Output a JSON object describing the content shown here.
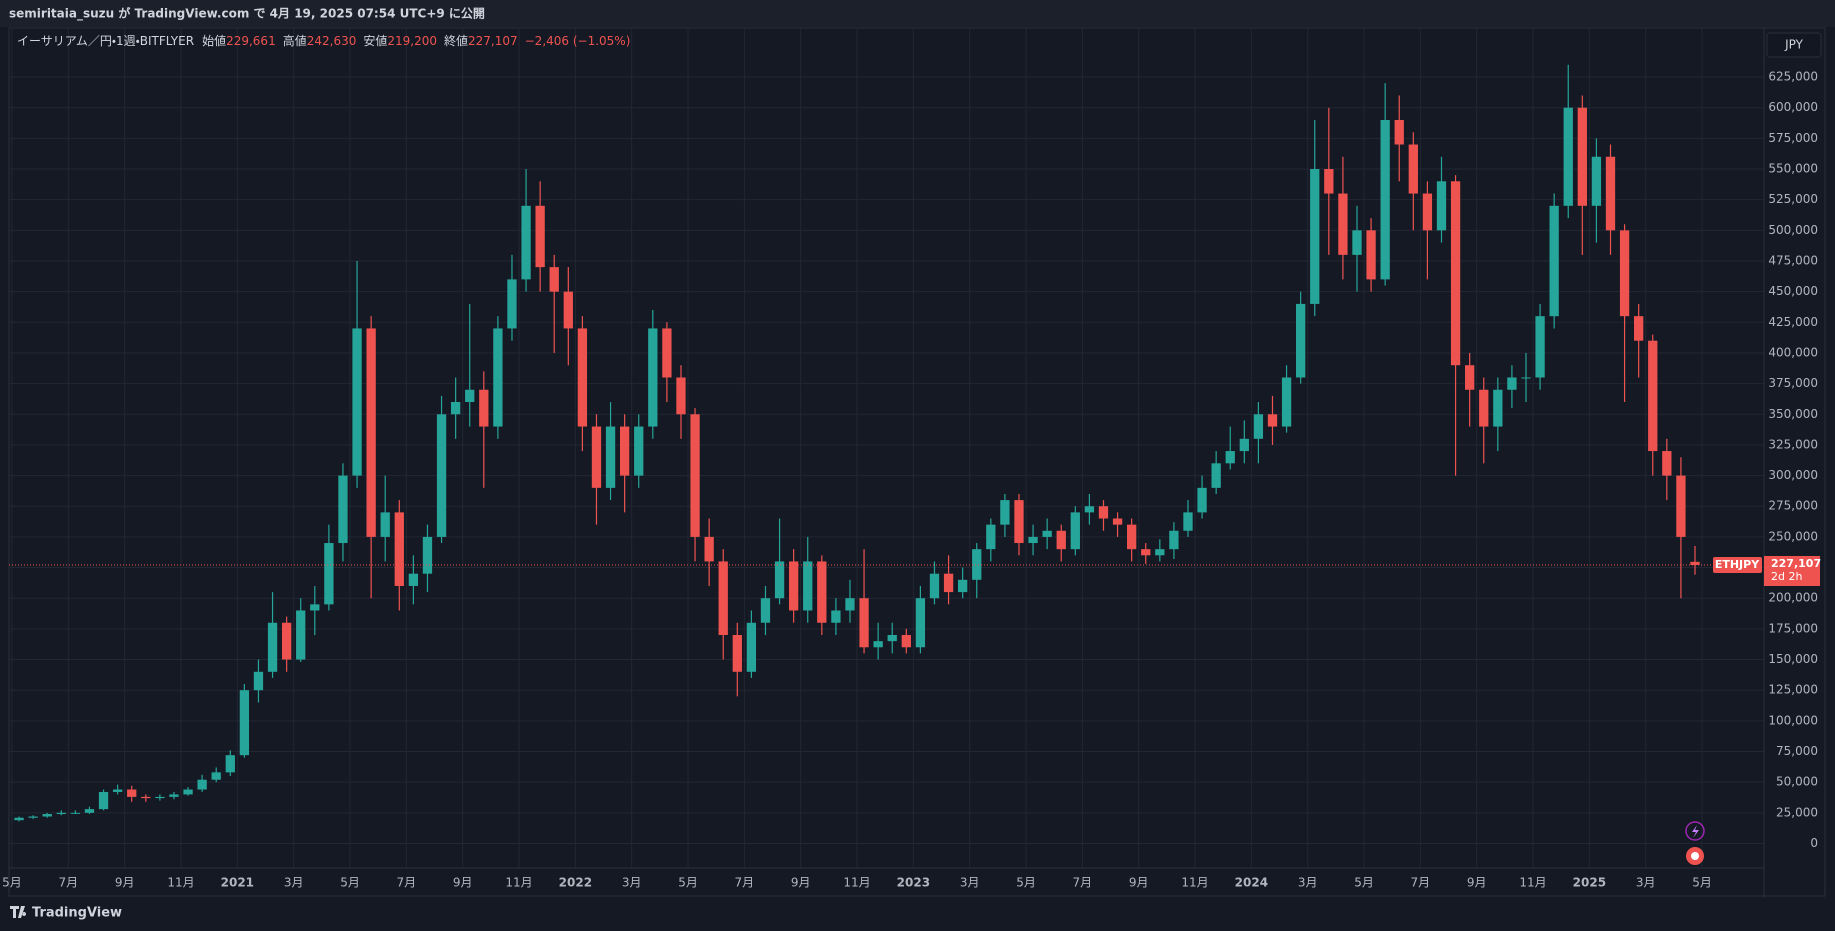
{
  "header": {
    "publisher": "semiritaia_suzu が TradingView.com で 4月 19, 2025 07:54 UTC+9 に公開"
  },
  "chart_data": {
    "type": "candlestick",
    "symbol": "イーサリアム／円・1週・BITFLYER",
    "legend": [
      {
        "name": "始値",
        "value": "229,661"
      },
      {
        "name": "高値",
        "value": "242,630"
      },
      {
        "name": "安値",
        "value": "219,200"
      },
      {
        "name": "終値",
        "value": "227,107"
      }
    ],
    "change": "−2,406 (−1.05%)",
    "currency": "JPY",
    "price_tag": {
      "symbol": "ETHJPY",
      "price": "227,107",
      "countdown": "2d 2h"
    },
    "up_color": "#26a69a",
    "down_color": "#ef5350",
    "x": [
      "2020-05",
      "2020-05",
      "2020-06",
      "2020-06",
      "2020-07",
      "2020-07",
      "2020-08",
      "2020-08",
      "2020-09",
      "2020-09",
      "2020-10",
      "2020-10",
      "2020-11",
      "2020-11",
      "2020-12",
      "2020-12",
      "2021-01",
      "2021-01",
      "2021-02",
      "2021-02",
      "2021-03",
      "2021-03",
      "2021-04",
      "2021-04",
      "2021-05",
      "2021-05",
      "2021-06",
      "2021-06",
      "2021-07",
      "2021-07",
      "2021-08",
      "2021-08",
      "2021-09",
      "2021-09",
      "2021-10",
      "2021-10",
      "2021-11",
      "2021-11",
      "2021-12",
      "2021-12",
      "2022-01",
      "2022-01",
      "2022-02",
      "2022-02",
      "2022-03",
      "2022-03",
      "2022-04",
      "2022-04",
      "2022-05",
      "2022-05",
      "2022-06",
      "2022-06",
      "2022-07",
      "2022-07",
      "2022-08",
      "2022-08",
      "2022-09",
      "2022-09",
      "2022-10",
      "2022-10",
      "2022-11",
      "2022-11",
      "2022-12",
      "2022-12",
      "2023-01",
      "2023-01",
      "2023-02",
      "2023-02",
      "2023-03",
      "2023-03",
      "2023-04",
      "2023-04",
      "2023-05",
      "2023-05",
      "2023-06",
      "2023-06",
      "2023-07",
      "2023-07",
      "2023-08",
      "2023-08",
      "2023-09",
      "2023-09",
      "2023-10",
      "2023-10",
      "2023-11",
      "2023-11",
      "2023-12",
      "2023-12",
      "2024-01",
      "2024-01",
      "2024-02",
      "2024-02",
      "2024-03",
      "2024-03",
      "2024-04",
      "2024-04",
      "2024-05",
      "2024-05",
      "2024-06",
      "2024-06",
      "2024-07",
      "2024-07",
      "2024-08",
      "2024-08",
      "2024-09",
      "2024-09",
      "2024-10",
      "2024-10",
      "2024-11",
      "2024-11",
      "2024-12",
      "2024-12",
      "2025-01",
      "2025-01",
      "2025-02",
      "2025-02",
      "2025-03",
      "2025-03",
      "2025-04",
      "2025-04"
    ],
    "open": [
      19000,
      21000,
      22000,
      24000,
      25000,
      25000,
      28000,
      42000,
      44000,
      38000,
      37000,
      38000,
      40000,
      44000,
      52000,
      58000,
      72000,
      125000,
      140000,
      180000,
      150000,
      190000,
      195000,
      245000,
      300000,
      420000,
      250000,
      270000,
      210000,
      220000,
      250000,
      350000,
      360000,
      370000,
      340000,
      420000,
      460000,
      520000,
      470000,
      450000,
      420000,
      340000,
      290000,
      340000,
      300000,
      340000,
      420000,
      380000,
      350000,
      250000,
      230000,
      170000,
      140000,
      180000,
      200000,
      230000,
      190000,
      230000,
      180000,
      190000,
      200000,
      160000,
      165000,
      170000,
      160000,
      200000,
      220000,
      205000,
      215000,
      240000,
      260000,
      280000,
      245000,
      250000,
      255000,
      240000,
      270000,
      275000,
      265000,
      260000,
      240000,
      235000,
      240000,
      255000,
      270000,
      290000,
      310000,
      320000,
      330000,
      350000,
      340000,
      380000,
      440000,
      550000,
      530000,
      480000,
      500000,
      460000,
      590000,
      570000,
      530000,
      500000,
      540000,
      390000,
      370000,
      340000,
      370000,
      380000,
      380000,
      430000,
      520000,
      600000,
      520000,
      560000,
      500000,
      430000,
      410000,
      320000,
      300000,
      229661
    ],
    "high": [
      22000,
      23000,
      25000,
      27000,
      27000,
      30000,
      44000,
      48000,
      47000,
      40000,
      40000,
      42000,
      46000,
      56000,
      62000,
      76000,
      130000,
      150000,
      205000,
      185000,
      200000,
      210000,
      260000,
      310000,
      475000,
      430000,
      300000,
      280000,
      235000,
      260000,
      365000,
      380000,
      440000,
      385000,
      430000,
      480000,
      550000,
      540000,
      480000,
      470000,
      430000,
      350000,
      360000,
      350000,
      350000,
      435000,
      425000,
      390000,
      355000,
      265000,
      240000,
      180000,
      190000,
      210000,
      265000,
      240000,
      250000,
      235000,
      200000,
      215000,
      240000,
      180000,
      180000,
      175000,
      210000,
      230000,
      235000,
      225000,
      245000,
      265000,
      285000,
      285000,
      260000,
      265000,
      260000,
      275000,
      285000,
      280000,
      270000,
      265000,
      245000,
      248000,
      262000,
      280000,
      300000,
      320000,
      340000,
      345000,
      360000,
      365000,
      390000,
      450000,
      590000,
      600000,
      560000,
      520000,
      510000,
      620000,
      610000,
      580000,
      540000,
      560000,
      545000,
      400000,
      380000,
      380000,
      390000,
      400000,
      440000,
      530000,
      635000,
      610000,
      575000,
      570000,
      505000,
      440000,
      415000,
      330000,
      315000,
      242630
    ],
    "low": [
      18000,
      20000,
      21000,
      23000,
      24000,
      24000,
      27000,
      40000,
      34000,
      34000,
      35000,
      36000,
      39000,
      42000,
      50000,
      55000,
      70000,
      115000,
      135000,
      140000,
      148000,
      170000,
      190000,
      230000,
      290000,
      200000,
      230000,
      190000,
      195000,
      205000,
      245000,
      330000,
      340000,
      290000,
      330000,
      410000,
      450000,
      450000,
      400000,
      390000,
      320000,
      260000,
      280000,
      270000,
      290000,
      330000,
      360000,
      330000,
      230000,
      210000,
      150000,
      120000,
      135000,
      170000,
      195000,
      180000,
      180000,
      170000,
      170000,
      180000,
      155000,
      150000,
      155000,
      155000,
      155000,
      195000,
      195000,
      200000,
      200000,
      230000,
      250000,
      235000,
      235000,
      240000,
      230000,
      235000,
      260000,
      255000,
      250000,
      230000,
      228000,
      230000,
      232000,
      250000,
      265000,
      285000,
      305000,
      310000,
      310000,
      325000,
      335000,
      375000,
      430000,
      480000,
      460000,
      450000,
      450000,
      455000,
      540000,
      500000,
      460000,
      490000,
      300000,
      340000,
      310000,
      320000,
      355000,
      360000,
      370000,
      420000,
      510000,
      480000,
      490000,
      480000,
      360000,
      380000,
      300000,
      280000,
      200000,
      219200
    ],
    "close": [
      21000,
      22000,
      24000,
      25000,
      25000,
      28000,
      42000,
      44000,
      38000,
      37000,
      38000,
      40000,
      44000,
      52000,
      58000,
      72000,
      125000,
      140000,
      180000,
      150000,
      190000,
      195000,
      245000,
      300000,
      420000,
      250000,
      270000,
      210000,
      220000,
      250000,
      350000,
      360000,
      370000,
      340000,
      420000,
      460000,
      520000,
      470000,
      450000,
      420000,
      340000,
      290000,
      340000,
      300000,
      340000,
      420000,
      380000,
      350000,
      250000,
      230000,
      170000,
      140000,
      180000,
      200000,
      230000,
      190000,
      230000,
      180000,
      190000,
      200000,
      160000,
      165000,
      170000,
      160000,
      200000,
      220000,
      205000,
      215000,
      240000,
      260000,
      280000,
      245000,
      250000,
      255000,
      240000,
      270000,
      275000,
      265000,
      260000,
      240000,
      235000,
      240000,
      255000,
      270000,
      290000,
      310000,
      320000,
      330000,
      350000,
      340000,
      380000,
      440000,
      550000,
      530000,
      480000,
      500000,
      460000,
      590000,
      570000,
      530000,
      500000,
      540000,
      390000,
      370000,
      340000,
      370000,
      380000,
      380000,
      430000,
      520000,
      600000,
      520000,
      560000,
      500000,
      430000,
      410000,
      320000,
      300000,
      250000,
      227107
    ],
    "ylim": [
      -20000,
      665000
    ],
    "yticks": [
      0,
      {
        "value": 25000,
        "label": "25,000"
      },
      {
        "value": 50000,
        "label": "50,000"
      },
      {
        "value": 75000,
        "label": "75,000"
      },
      {
        "value": 100000,
        "label": "100,000"
      },
      {
        "value": 125000,
        "label": "125,000"
      },
      {
        "value": 150000,
        "label": "150,000"
      },
      {
        "value": 175000,
        "label": "175,000"
      },
      {
        "value": 200000,
        "label": "200,000"
      },
      {
        "value": 225000,
        "label": "225,000"
      },
      {
        "value": 250000,
        "label": "250,000"
      },
      {
        "value": 275000,
        "label": "275,000"
      },
      {
        "value": 300000,
        "label": "300,000"
      },
      {
        "value": 325000,
        "label": "325,000"
      },
      {
        "value": 350000,
        "label": "350,000"
      },
      {
        "value": 375000,
        "label": "375,000"
      },
      {
        "value": 400000,
        "label": "400,000"
      },
      {
        "value": 425000,
        "label": "425,000"
      },
      {
        "value": 450000,
        "label": "450,000"
      },
      {
        "value": 475000,
        "label": "475,000"
      },
      {
        "value": 500000,
        "label": "500,000"
      },
      {
        "value": 525000,
        "label": "525,000"
      },
      {
        "value": 550000,
        "label": "550,000"
      },
      {
        "value": 575000,
        "label": "575,000"
      },
      {
        "value": 600000,
        "label": "600,000"
      },
      {
        "value": 625000,
        "label": "625,000"
      }
    ],
    "xticks": [
      {
        "value": "2020-05",
        "label": "5月"
      },
      {
        "value": "2020-07",
        "label": "7月"
      },
      {
        "value": "2020-09",
        "label": "9月"
      },
      {
        "value": "2020-11",
        "label": "11月"
      },
      {
        "value": "2021-01",
        "label": "2021"
      },
      {
        "value": "2021-03",
        "label": "3月"
      },
      {
        "value": "2021-05",
        "label": "5月"
      },
      {
        "value": "2021-07",
        "label": "7月"
      },
      {
        "value": "2021-09",
        "label": "9月"
      },
      {
        "value": "2021-11",
        "label": "11月"
      },
      {
        "value": "2022-01",
        "label": "2022"
      },
      {
        "value": "2022-03",
        "label": "3月"
      },
      {
        "value": "2022-05",
        "label": "5月"
      },
      {
        "value": "2022-07",
        "label": "7月"
      },
      {
        "value": "2022-09",
        "label": "9月"
      },
      {
        "value": "2022-11",
        "label": "11月"
      },
      {
        "value": "2023-01",
        "label": "2023"
      },
      {
        "value": "2023-03",
        "label": "3月"
      },
      {
        "value": "2023-05",
        "label": "5月"
      },
      {
        "value": "2023-07",
        "label": "7月"
      },
      {
        "value": "2023-09",
        "label": "9月"
      },
      {
        "value": "2023-11",
        "label": "11月"
      },
      {
        "value": "2024-01",
        "label": "2024"
      },
      {
        "value": "2024-03",
        "label": "3月"
      },
      {
        "value": "2024-05",
        "label": "5月"
      },
      {
        "value": "2024-07",
        "label": "7月"
      },
      {
        "value": "2024-09",
        "label": "9月"
      },
      {
        "value": "2024-11",
        "label": "11月"
      },
      {
        "value": "2025-01",
        "label": "2025"
      },
      {
        "value": "2025-03",
        "label": "3月"
      },
      {
        "value": "2025-05",
        "label": "5月"
      }
    ],
    "grid": true
  },
  "footer": {
    "brand": "TradingView"
  }
}
